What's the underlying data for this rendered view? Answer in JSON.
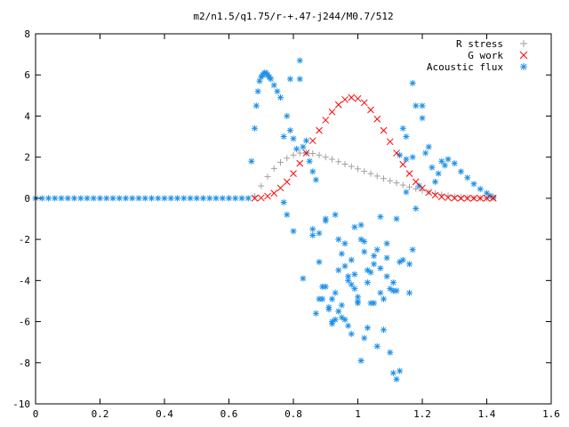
{
  "chart_data": {
    "type": "scatter",
    "title": "m2/n1.5/q1.75/r-+.47-j244/M0.7/512",
    "xlabel": "",
    "ylabel": "",
    "xlim": [
      0,
      1.6
    ],
    "ylim": [
      -10,
      8
    ],
    "xticks": [
      0,
      0.2,
      0.4,
      0.6,
      0.8,
      1,
      1.2,
      1.4,
      1.6
    ],
    "yticks": [
      -10,
      -8,
      -6,
      -4,
      -2,
      0,
      2,
      4,
      6,
      8
    ],
    "xtick_labels": [
      "0",
      "0.2",
      "0.4",
      "0.6",
      "0.8",
      "1",
      "1.2",
      "1.4",
      "1.6"
    ],
    "ytick_labels": [
      "-10",
      "-8",
      "-6",
      "-4",
      "-2",
      "0",
      "2",
      "4",
      "6",
      "8"
    ],
    "grid": false,
    "legend_position": "top-right",
    "series": [
      {
        "name": "R stress",
        "marker": "plus",
        "color": "#a0a0a0",
        "x": [
          0.68,
          0.7,
          0.72,
          0.74,
          0.76,
          0.78,
          0.8,
          0.82,
          0.84,
          0.86,
          0.88,
          0.9,
          0.92,
          0.94,
          0.96,
          0.98,
          1.0,
          1.02,
          1.04,
          1.06,
          1.08,
          1.1,
          1.12,
          1.14,
          1.16,
          1.18,
          1.2,
          1.22,
          1.24,
          1.26,
          1.28,
          1.3,
          1.32,
          1.34,
          1.36,
          1.38,
          1.4,
          1.42
        ],
        "y": [
          0.1,
          0.6,
          1.05,
          1.45,
          1.75,
          1.95,
          2.1,
          2.2,
          2.22,
          2.18,
          2.1,
          2.0,
          1.9,
          1.78,
          1.66,
          1.55,
          1.43,
          1.31,
          1.2,
          1.08,
          0.96,
          0.85,
          0.75,
          0.64,
          0.55,
          0.46,
          0.38,
          0.3,
          0.24,
          0.18,
          0.13,
          0.09,
          0.06,
          0.04,
          0.02,
          0.01,
          0.0,
          0.0
        ]
      },
      {
        "name": "G work",
        "marker": "cross",
        "color": "#ff0000",
        "x": [
          0.68,
          0.7,
          0.72,
          0.74,
          0.76,
          0.78,
          0.8,
          0.82,
          0.84,
          0.86,
          0.88,
          0.9,
          0.92,
          0.94,
          0.96,
          0.98,
          1.0,
          1.02,
          1.04,
          1.06,
          1.08,
          1.1,
          1.12,
          1.14,
          1.16,
          1.18,
          1.2,
          1.22,
          1.24,
          1.26,
          1.28,
          1.3,
          1.32,
          1.34,
          1.36,
          1.38,
          1.4,
          1.42
        ],
        "y": [
          0.0,
          0.02,
          0.1,
          0.25,
          0.5,
          0.8,
          1.2,
          1.7,
          2.2,
          2.8,
          3.3,
          3.8,
          4.2,
          4.55,
          4.8,
          4.9,
          4.85,
          4.65,
          4.3,
          3.85,
          3.3,
          2.75,
          2.2,
          1.65,
          1.2,
          0.8,
          0.5,
          0.28,
          0.15,
          0.07,
          0.03,
          0.01,
          0.0,
          0.0,
          0.0,
          0.0,
          0.0,
          0.0
        ]
      },
      {
        "name": "Acoustic flux",
        "marker": "star",
        "color": "#1e90e6",
        "x": [
          0.0,
          0.02,
          0.04,
          0.06,
          0.08,
          0.1,
          0.12,
          0.14,
          0.16,
          0.18,
          0.2,
          0.22,
          0.24,
          0.26,
          0.28,
          0.3,
          0.32,
          0.34,
          0.36,
          0.38,
          0.4,
          0.42,
          0.44,
          0.46,
          0.48,
          0.5,
          0.52,
          0.54,
          0.56,
          0.58,
          0.6,
          0.62,
          0.64,
          0.66,
          0.67,
          0.68,
          0.685,
          0.69,
          0.695,
          0.7,
          0.705,
          0.71,
          0.715,
          0.72,
          0.725,
          0.73,
          0.74,
          0.75,
          0.76,
          0.77,
          0.78,
          0.79,
          0.8,
          0.81,
          0.82,
          0.83,
          0.84,
          0.85,
          0.86,
          0.87,
          0.88,
          0.89,
          0.9,
          0.91,
          0.92,
          0.93,
          0.94,
          0.95,
          0.96,
          0.97,
          0.98,
          0.99,
          1.0,
          1.01,
          1.02,
          1.03,
          1.04,
          1.05,
          1.06,
          1.07,
          1.08,
          1.09,
          1.1,
          1.11,
          1.12,
          1.13,
          1.14,
          1.15,
          1.16,
          1.17,
          1.18,
          1.19,
          1.2,
          1.21,
          1.22,
          1.23,
          1.24,
          1.25,
          1.26,
          1.27,
          1.28,
          1.3,
          1.32,
          1.34,
          1.36,
          1.38,
          1.4,
          1.41,
          1.42,
          0.77,
          0.78,
          0.79,
          0.8,
          0.82,
          0.83,
          0.84,
          0.86,
          0.87,
          0.88,
          0.89,
          0.9,
          0.91,
          0.92,
          0.93,
          0.94,
          0.95,
          0.96,
          0.97,
          0.98,
          0.99,
          1.0,
          1.01,
          1.02,
          1.03,
          1.05,
          1.07,
          1.09,
          1.1,
          1.11,
          1.12,
          1.13,
          1.14,
          1.15,
          1.16,
          1.17,
          1.18,
          1.2,
          0.88,
          0.9,
          0.92,
          0.94,
          0.96,
          0.98,
          1.0,
          1.01,
          1.02,
          1.04,
          1.06,
          1.08,
          1.12,
          1.15,
          0.86,
          0.93,
          0.95,
          0.97,
          0.99,
          1.03,
          1.05,
          1.07,
          1.09,
          1.11,
          1.13,
          1.17
        ],
        "y": [
          0,
          0,
          0,
          0,
          0,
          0,
          0,
          0,
          0,
          0,
          0,
          0,
          0,
          0,
          0,
          0,
          0,
          0,
          0,
          0,
          0,
          0,
          0,
          0,
          0,
          0,
          0,
          0,
          0,
          0,
          0,
          0,
          0,
          0,
          1.8,
          3.4,
          4.5,
          5.2,
          5.7,
          5.9,
          6.0,
          6.1,
          6.1,
          6.0,
          5.9,
          5.8,
          5.5,
          5.2,
          4.9,
          -0.2,
          4.0,
          3.3,
          2.9,
          2.4,
          5.8,
          2.5,
          2.2,
          1.8,
          1.3,
          0.9,
          -1.7,
          -4.3,
          -1.1,
          -5.4,
          -4.9,
          -0.8,
          -5.5,
          -2.7,
          -5.9,
          -6.2,
          -3.0,
          -4.4,
          -4.8,
          -2.0,
          -6.8,
          -3.5,
          -5.1,
          -3.2,
          -7.2,
          -4.6,
          -6.4,
          -2.9,
          -4.4,
          -4.5,
          -1.0,
          2.1,
          3.4,
          3.0,
          -3.2,
          -2.5,
          -0.5,
          0.6,
          4.5,
          2.2,
          2.5,
          1.5,
          0.8,
          1.2,
          1.8,
          1.6,
          1.9,
          1.7,
          1.3,
          1.0,
          0.7,
          0.45,
          0.25,
          0.12,
          0.05,
          3.0,
          -0.8,
          5.8,
          -1.6,
          6.7,
          -3.9,
          2.8,
          -1.5,
          -5.6,
          -3.1,
          -4.9,
          -4.3,
          -5.3,
          -6.0,
          -4.6,
          -3.5,
          -5.8,
          -2.2,
          -4.0,
          -6.6,
          -3.7,
          -5.0,
          -1.3,
          -2.1,
          -4.1,
          -2.8,
          -0.9,
          -3.8,
          -7.5,
          -8.5,
          -8.8,
          -8.4,
          -3.0,
          1.9,
          -4.6,
          5.6,
          4.5,
          3.9,
          -4.9,
          -1.0,
          -6.1,
          -2.0,
          -3.3,
          -4.2,
          -5.1,
          -7.9,
          -2.6,
          -3.6,
          -2.5,
          -4.9,
          -4.5,
          0.3,
          -1.8,
          -5.9,
          -5.2,
          -3.8,
          -1.4,
          -6.3,
          -5.1,
          -3.4,
          -2.2,
          -4.1,
          -3.1,
          2.0
        ]
      }
    ]
  }
}
